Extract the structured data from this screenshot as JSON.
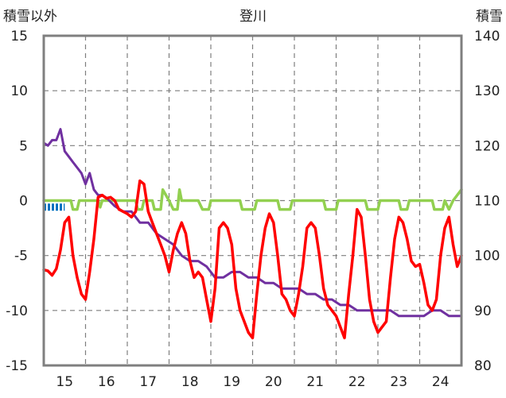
{
  "chart_data": {
    "type": "line",
    "title": "登川",
    "ylabel_left": "積雪以外",
    "ylabel_right": "積雪",
    "x_ticks": [
      "15",
      "16",
      "17",
      "18",
      "19",
      "20",
      "21",
      "22",
      "23",
      "24"
    ],
    "ylim_left": [
      -15,
      15
    ],
    "yticks_left": [
      "15",
      "10",
      "5",
      "0",
      "-5",
      "-10",
      "-15"
    ],
    "ylim_right": [
      80,
      140
    ],
    "yticks_right": [
      "140",
      "130",
      "120",
      "110",
      "100",
      "90",
      "80"
    ],
    "grid": true,
    "series": [
      {
        "color": "#ff0000",
        "axis": "left",
        "x": [
          14.5,
          14.6,
          14.7,
          14.8,
          14.9,
          15.0,
          15.1,
          15.2,
          15.3,
          15.4,
          15.5,
          15.6,
          15.7,
          15.8,
          15.9,
          16.0,
          16.1,
          16.2,
          16.3,
          16.4,
          16.5,
          16.6,
          16.7,
          16.8,
          16.9,
          17.0,
          17.1,
          17.2,
          17.3,
          17.4,
          17.5,
          17.6,
          17.7,
          17.8,
          17.9,
          18.0,
          18.1,
          18.2,
          18.3,
          18.4,
          18.5,
          18.6,
          18.7,
          18.8,
          18.9,
          19.0,
          19.1,
          19.2,
          19.3,
          19.4,
          19.5,
          19.6,
          19.7,
          19.8,
          19.9,
          20.0,
          20.1,
          20.2,
          20.3,
          20.4,
          20.5,
          20.6,
          20.7,
          20.8,
          20.9,
          21.0,
          21.1,
          21.2,
          21.3,
          21.4,
          21.5,
          21.6,
          21.7,
          21.8,
          21.9,
          22.0,
          22.1,
          22.2,
          22.3,
          22.4,
          22.5,
          22.6,
          22.7,
          22.8,
          22.9,
          23.0,
          23.1,
          23.2,
          23.3,
          23.4,
          23.5,
          23.6,
          23.7,
          23.8,
          23.9,
          24.0,
          24.1,
          24.2,
          24.3,
          24.4,
          24.5
        ],
        "y": [
          -6.3,
          -6.4,
          -6.8,
          -6.2,
          -4.5,
          -2.0,
          -1.5,
          -5.0,
          -7.0,
          -8.5,
          -9.0,
          -6.5,
          -3.5,
          0.3,
          0.5,
          0.2,
          0.3,
          0.0,
          -0.8,
          -1.0,
          -1.2,
          -1.5,
          -1.0,
          1.8,
          1.5,
          -1.0,
          -2.0,
          -3.0,
          -4.0,
          -5.0,
          -6.5,
          -4.5,
          -3.0,
          -2.0,
          -3.0,
          -5.5,
          -7.0,
          -6.5,
          -7.0,
          -9.0,
          -11.0,
          -8.0,
          -2.5,
          -2.0,
          -2.5,
          -4.0,
          -8.0,
          -10.0,
          -11.0,
          -12.0,
          -12.5,
          -8.5,
          -5.0,
          -2.5,
          -1.2,
          -2.0,
          -5.0,
          -8.5,
          -9.0,
          -10.0,
          -10.5,
          -8.5,
          -6.0,
          -2.5,
          -2.0,
          -2.5,
          -5.0,
          -8.0,
          -9.5,
          -10.0,
          -10.5,
          -11.5,
          -12.5,
          -8.5,
          -5.0,
          -0.8,
          -1.5,
          -5.0,
          -9.0,
          -11.0,
          -12.0,
          -11.5,
          -11.0,
          -7.0,
          -3.5,
          -1.5,
          -2.0,
          -3.5,
          -5.5,
          -6.0,
          -5.8,
          -7.5,
          -9.5,
          -10.0,
          -9.0,
          -5.0,
          -2.5,
          -1.5,
          -4.0,
          -6.0,
          -5.0
        ]
      },
      {
        "color": "#7030a0",
        "axis": "right",
        "x": [
          14.5,
          14.6,
          14.7,
          14.8,
          14.9,
          15.0,
          15.1,
          15.2,
          15.3,
          15.4,
          15.5,
          15.6,
          15.7,
          15.8,
          15.9,
          16.0,
          16.2,
          16.4,
          16.6,
          16.8,
          17.0,
          17.2,
          17.4,
          17.6,
          17.8,
          18.0,
          18.2,
          18.4,
          18.6,
          18.8,
          19.0,
          19.2,
          19.4,
          19.6,
          19.8,
          20.0,
          20.2,
          20.4,
          20.6,
          20.8,
          21.0,
          21.2,
          21.4,
          21.6,
          21.8,
          22.0,
          22.2,
          22.4,
          22.6,
          22.8,
          23.0,
          23.2,
          23.4,
          23.6,
          23.8,
          24.0,
          24.2,
          24.4,
          24.5
        ],
        "y": [
          120.5,
          120.0,
          121.0,
          121.0,
          123.0,
          119.0,
          118.0,
          117.0,
          116.0,
          115.0,
          113.0,
          115.0,
          112.0,
          111.0,
          111.0,
          110.5,
          109.0,
          108.0,
          108.0,
          106.0,
          106.0,
          104.0,
          103.0,
          102.0,
          100.0,
          99.0,
          99.0,
          98.0,
          96.0,
          96.0,
          97.0,
          97.0,
          96.0,
          96.0,
          95.0,
          95.0,
          94.0,
          94.0,
          94.0,
          93.0,
          93.0,
          92.0,
          92.0,
          91.0,
          91.0,
          90.0,
          90.0,
          90.0,
          90.0,
          90.0,
          89.0,
          89.0,
          89.0,
          89.0,
          90.0,
          90.0,
          89.0,
          89.0,
          89.0
        ]
      },
      {
        "color": "#92d050",
        "axis": "left",
        "x": [
          14.5,
          15.0,
          15.15,
          15.2,
          15.3,
          15.35,
          15.5,
          15.8,
          15.85,
          15.9,
          16.0,
          16.5,
          16.7,
          16.75,
          16.85,
          16.9,
          17.0,
          17.1,
          17.15,
          17.3,
          17.35,
          17.5,
          17.6,
          17.7,
          17.75,
          17.8,
          17.9,
          18.0,
          18.2,
          18.3,
          18.45,
          18.5,
          18.6,
          19.0,
          19.2,
          19.25,
          19.55,
          19.6,
          20.0,
          20.1,
          20.15,
          20.4,
          20.45,
          20.6,
          21.0,
          21.2,
          21.25,
          21.5,
          21.55,
          21.6,
          22.0,
          22.2,
          22.25,
          22.5,
          22.55,
          22.6,
          22.9,
          23.0,
          23.05,
          23.2,
          23.25,
          23.4,
          23.8,
          23.85,
          24.05,
          24.1,
          24.2,
          24.3,
          24.5
        ],
        "y": [
          0,
          0,
          0,
          -0.8,
          -0.8,
          0,
          0,
          0,
          -0.6,
          0,
          0,
          0,
          0,
          -0.8,
          -0.8,
          0,
          0,
          0,
          -0.8,
          -0.8,
          1.0,
          0,
          -0.8,
          -0.8,
          1.0,
          0,
          0,
          0,
          0,
          -0.8,
          -0.8,
          0,
          0,
          0,
          0,
          -0.8,
          -0.8,
          0,
          0,
          0,
          -0.8,
          -0.8,
          0,
          0,
          0,
          0,
          -0.8,
          -0.8,
          0,
          0,
          0,
          0,
          -0.8,
          -0.8,
          0,
          0,
          0,
          0,
          -0.8,
          -0.8,
          0,
          0,
          0,
          -0.8,
          -0.8,
          0,
          -0.8,
          0,
          1.0
        ]
      },
      {
        "color": "#0070c0",
        "axis": "left",
        "type": "dashed",
        "x": [
          14.5,
          15.0
        ],
        "y": [
          -0.6,
          -0.6
        ]
      }
    ]
  }
}
